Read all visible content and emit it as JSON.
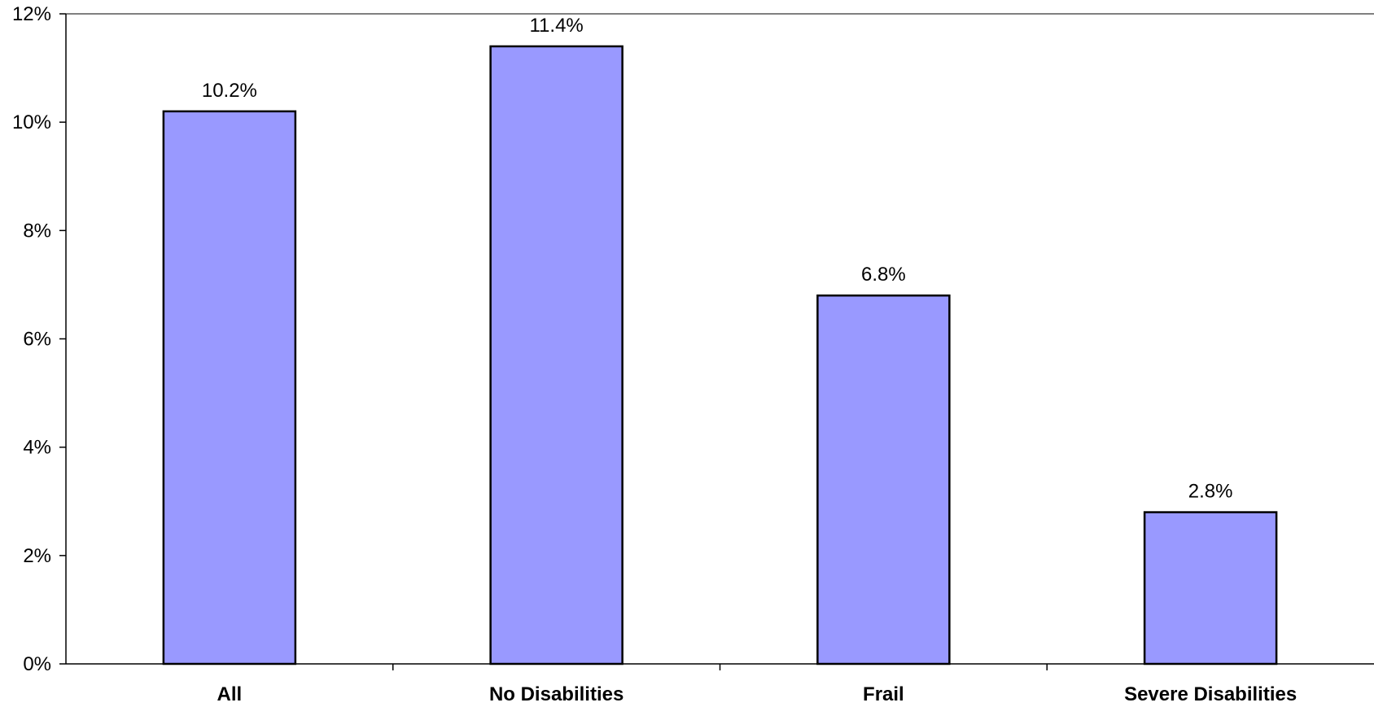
{
  "chart_data": {
    "type": "bar",
    "title": "",
    "xlabel": "",
    "ylabel": "",
    "categories": [
      "All",
      "No Disabilities",
      "Frail",
      "Severe Disabilities"
    ],
    "values": [
      10.2,
      11.4,
      6.8,
      2.8
    ],
    "data_labels": [
      "10.2%",
      "11.4%",
      "6.8%",
      "2.8%"
    ],
    "ylim": [
      0,
      12
    ],
    "y_ticks": [
      0,
      2,
      4,
      6,
      8,
      10,
      12
    ],
    "y_tick_labels": [
      "0%",
      "2%",
      "4%",
      "6%",
      "8%",
      "10%",
      "12%"
    ],
    "grid": false,
    "legend": "none",
    "colors": {
      "bar_fill": "#9999ff",
      "bar_stroke": "#000000",
      "axis": "#000000",
      "plot_border": "#808080"
    }
  }
}
